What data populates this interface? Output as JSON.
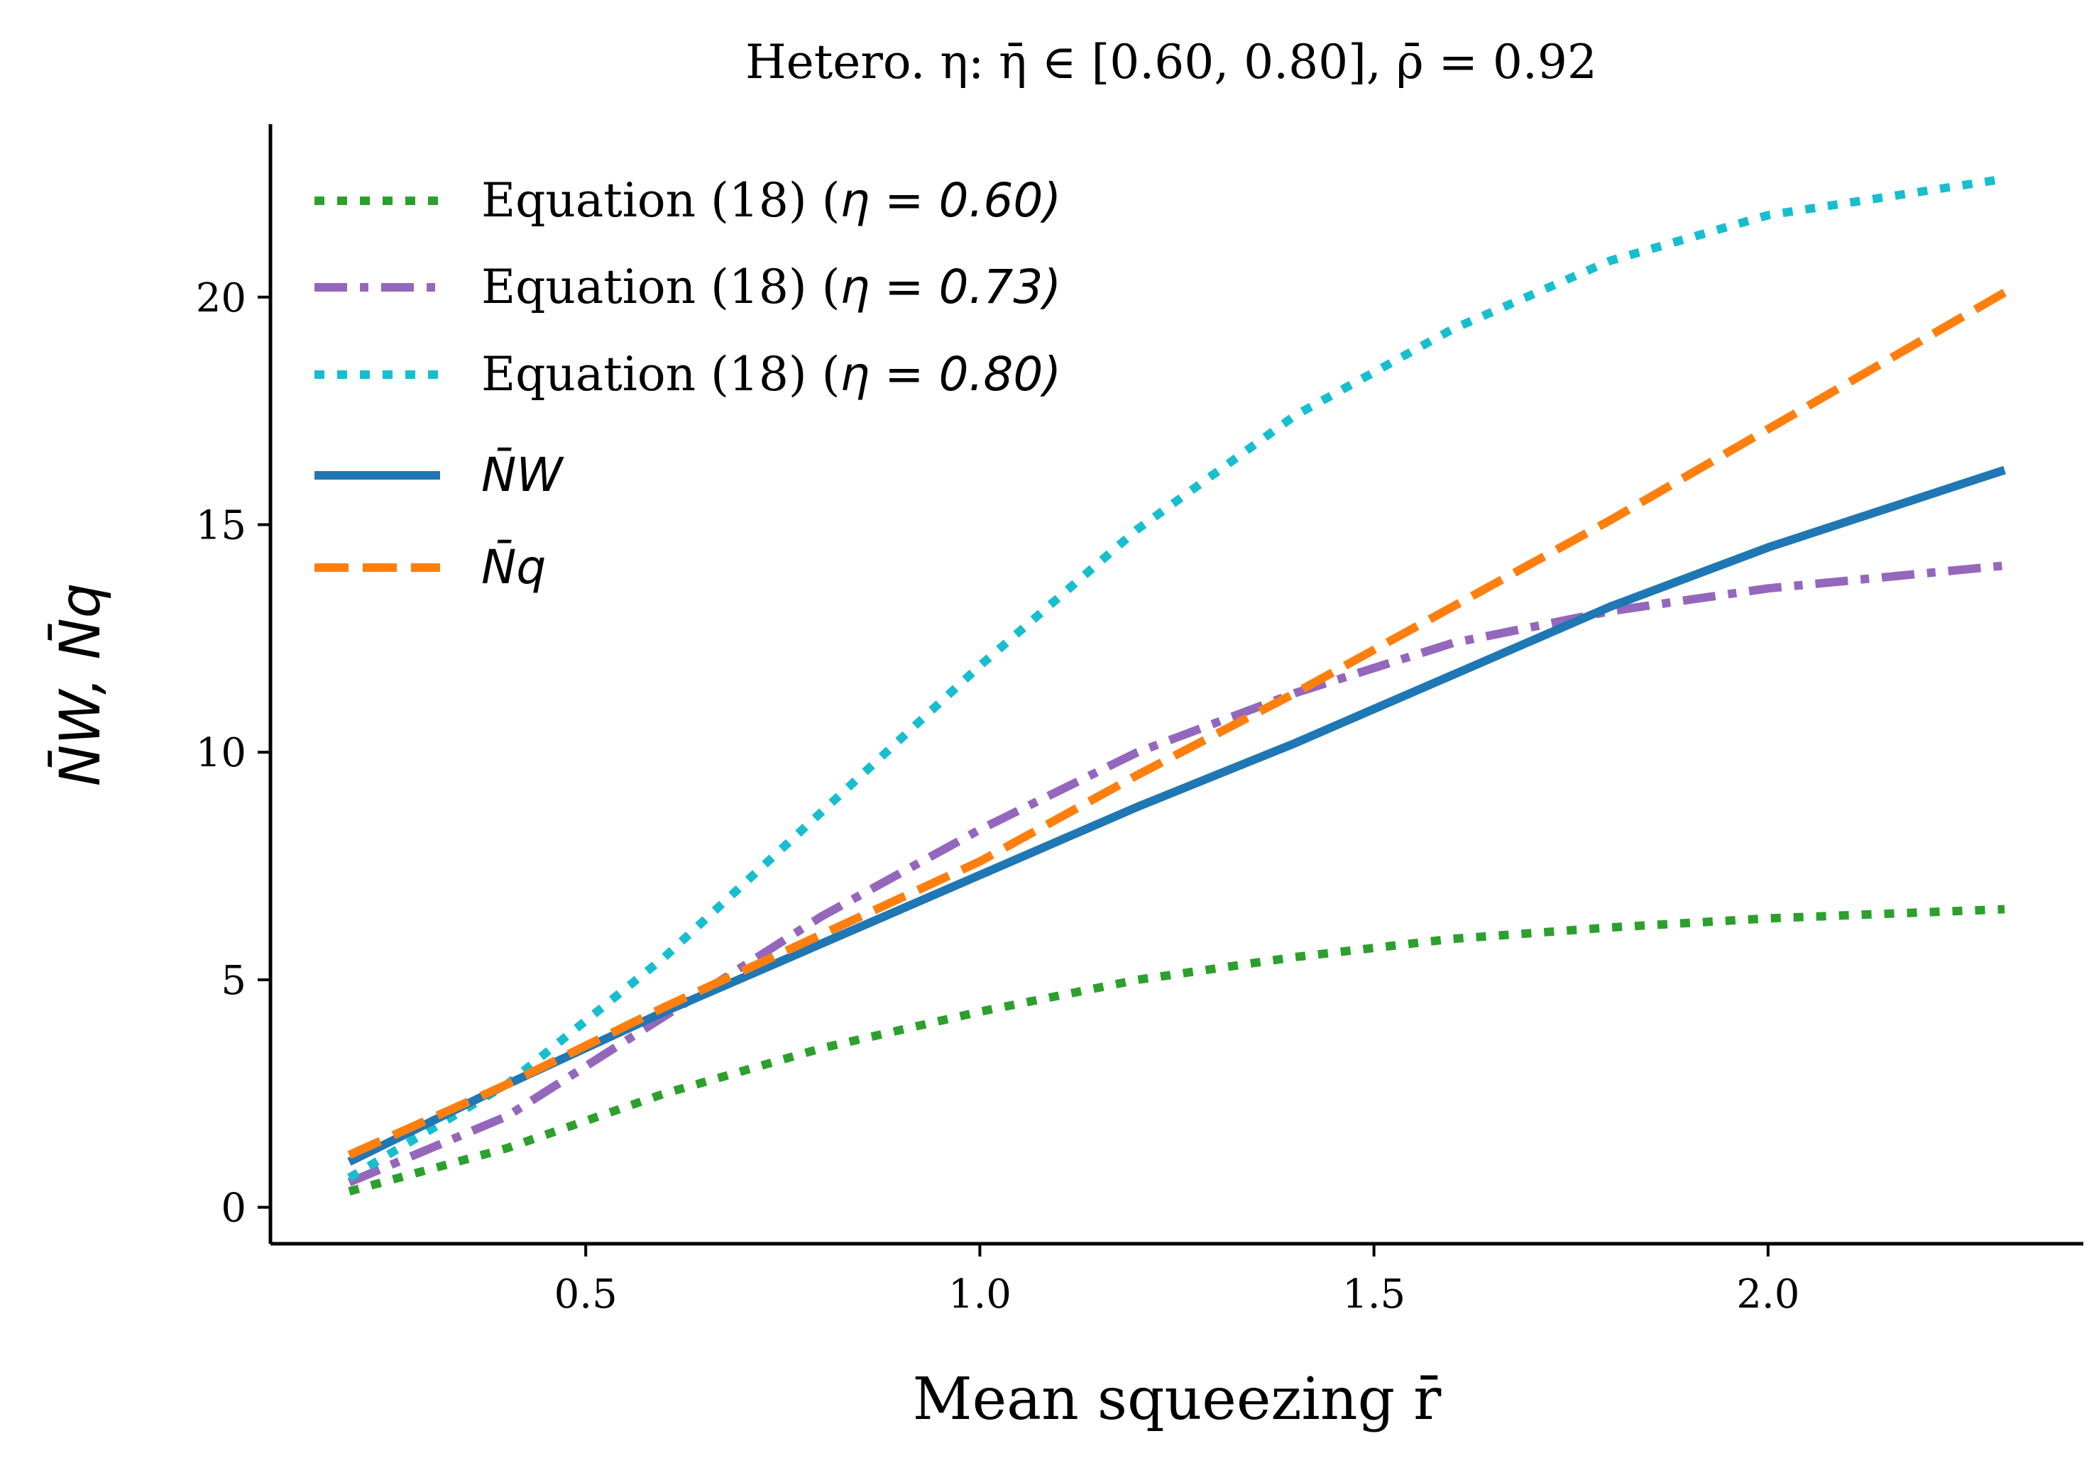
{
  "chart_data": {
    "type": "line",
    "title": "Hetero. η: η̄ ∈ [0.60, 0.80], ρ̄ = 0.92",
    "xlabel": "Mean squeezing r̄",
    "ylabel": "N̄W, N̄q",
    "xlim": [
      0.1,
      2.4
    ],
    "ylim": [
      -0.8,
      23.8
    ],
    "xticks": [
      0.5,
      1.0,
      1.5,
      2.0
    ],
    "xtick_labels": [
      "0.5",
      "1.0",
      "1.5",
      "2.0"
    ],
    "yticks": [
      0,
      5,
      10,
      15,
      20
    ],
    "ytick_labels": [
      "0",
      "5",
      "10",
      "15",
      "20"
    ],
    "grid": false,
    "legend_position": "upper-left",
    "series": [
      {
        "name": "Equation (18) (η = 0.60)",
        "legend_text": "Equation (18) (",
        "legend_math": "η = 0.60)",
        "color": "#2ca02c",
        "style": "dotted",
        "x": [
          0.2,
          0.4,
          0.6,
          0.8,
          1.0,
          1.2,
          1.4,
          1.6,
          1.8,
          2.0,
          2.3
        ],
        "y": [
          0.35,
          1.3,
          2.5,
          3.5,
          4.3,
          5.0,
          5.5,
          5.9,
          6.15,
          6.35,
          6.55
        ]
      },
      {
        "name": "Equation (18) (η = 0.73)",
        "legend_text": "Equation (18) (",
        "legend_math": "η = 0.73)",
        "color": "#9467bd",
        "style": "dashdot",
        "x": [
          0.2,
          0.4,
          0.6,
          0.8,
          1.0,
          1.2,
          1.4,
          1.6,
          1.8,
          2.0,
          2.3
        ],
        "y": [
          0.55,
          2.0,
          4.2,
          6.4,
          8.3,
          10.0,
          11.3,
          12.4,
          13.1,
          13.6,
          14.1
        ]
      },
      {
        "name": "Equation (18) (η = 0.80)",
        "legend_text": "Equation (18) (",
        "legend_math": "η = 0.80)",
        "color": "#17becf",
        "style": "dotted",
        "x": [
          0.2,
          0.4,
          0.6,
          0.8,
          1.0,
          1.2,
          1.4,
          1.6,
          1.8,
          2.0,
          2.3
        ],
        "y": [
          0.65,
          2.7,
          5.5,
          8.7,
          11.9,
          14.9,
          17.4,
          19.3,
          20.8,
          21.8,
          22.6
        ]
      },
      {
        "name": "N̄W",
        "legend_math": "N̄W",
        "color": "#1f77b4",
        "style": "solid",
        "x": [
          0.2,
          0.4,
          0.6,
          0.8,
          1.0,
          1.2,
          1.4,
          1.6,
          1.8,
          2.0,
          2.3
        ],
        "y": [
          1.0,
          2.7,
          4.3,
          5.8,
          7.3,
          8.8,
          10.2,
          11.7,
          13.2,
          14.5,
          16.2
        ]
      },
      {
        "name": "N̄q",
        "legend_math": "N̄q",
        "color": "#ff7f0e",
        "style": "dashed",
        "x": [
          0.2,
          0.4,
          0.6,
          0.8,
          1.0,
          1.2,
          1.4,
          1.6,
          1.8,
          2.0,
          2.3
        ],
        "y": [
          1.15,
          2.7,
          4.4,
          6.0,
          7.6,
          9.5,
          11.3,
          13.2,
          15.1,
          17.1,
          20.1
        ]
      }
    ]
  }
}
